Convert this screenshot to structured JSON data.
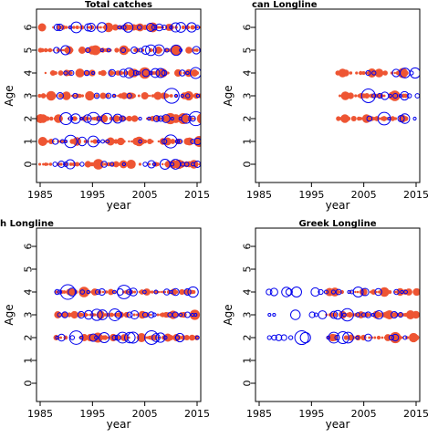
{
  "chart_data": [
    {
      "type": "scatter",
      "title": "Total catches",
      "xlabel": "year",
      "ylabel": "Age",
      "xlim": [
        1984.3,
        2015.7
      ],
      "ylim": [
        -0.8,
        6.8
      ],
      "xticks": [
        "1985",
        "1995",
        "2005",
        "2015"
      ],
      "yticks": [
        "0",
        "1",
        "2",
        "3",
        "4",
        "5",
        "6"
      ],
      "ages": [
        0,
        1,
        2,
        3,
        4,
        5,
        6
      ],
      "years_red": [
        1985,
        2016
      ],
      "years_blue": [
        1988,
        2015
      ],
      "colors": {
        "observed": "#ee5533",
        "residual": "#0000ee"
      },
      "grid": false,
      "legend": "none"
    },
    {
      "type": "scatter",
      "title": "can Longline",
      "xlabel": "year",
      "ylabel": "Age",
      "xlim": [
        1984.3,
        2015.7
      ],
      "ylim": [
        -0.8,
        6.8
      ],
      "xticks": [
        "1985",
        "1995",
        "2005",
        "2015"
      ],
      "yticks": [
        "0",
        "1",
        "2",
        "3",
        "4",
        "5",
        "6"
      ],
      "ages": [
        2,
        3,
        4
      ],
      "years_red": [
        2000,
        2013
      ],
      "years_blue": [
        2006,
        2015
      ],
      "colors": {
        "observed": "#ee5533",
        "residual": "#0000ee"
      },
      "grid": false,
      "legend": "none"
    },
    {
      "type": "scatter",
      "title": "h Longline",
      "xlabel": "year",
      "ylabel": "Age",
      "xlim": [
        1984.3,
        2015.7
      ],
      "ylim": [
        -0.8,
        6.8
      ],
      "xticks": [
        "1985",
        "1995",
        "2005",
        "2015"
      ],
      "yticks": [
        "0",
        "1",
        "2",
        "3",
        "4",
        "5",
        "6"
      ],
      "ages": [
        2,
        3,
        4
      ],
      "years_red": [
        1988,
        2015
      ],
      "years_blue": [
        1988,
        2015
      ],
      "colors": {
        "observed": "#ee5533",
        "residual": "#0000ee"
      },
      "grid": false,
      "legend": "none"
    },
    {
      "type": "scatter",
      "title": "Greek Longline",
      "xlabel": "year",
      "ylabel": "Age",
      "xlim": [
        1984.3,
        2015.7
      ],
      "ylim": [
        -0.8,
        6.8
      ],
      "xticks": [
        "1985",
        "1995",
        "2005",
        "2015"
      ],
      "yticks": [
        "0",
        "1",
        "2",
        "3",
        "4",
        "5",
        "6"
      ],
      "ages": [
        2,
        3,
        4
      ],
      "years_red": [
        1998,
        2015
      ],
      "years_blue": [
        1987,
        2013
      ],
      "colors": {
        "observed": "#ee5533",
        "residual": "#0000ee"
      },
      "grid": false,
      "legend": "none"
    }
  ]
}
